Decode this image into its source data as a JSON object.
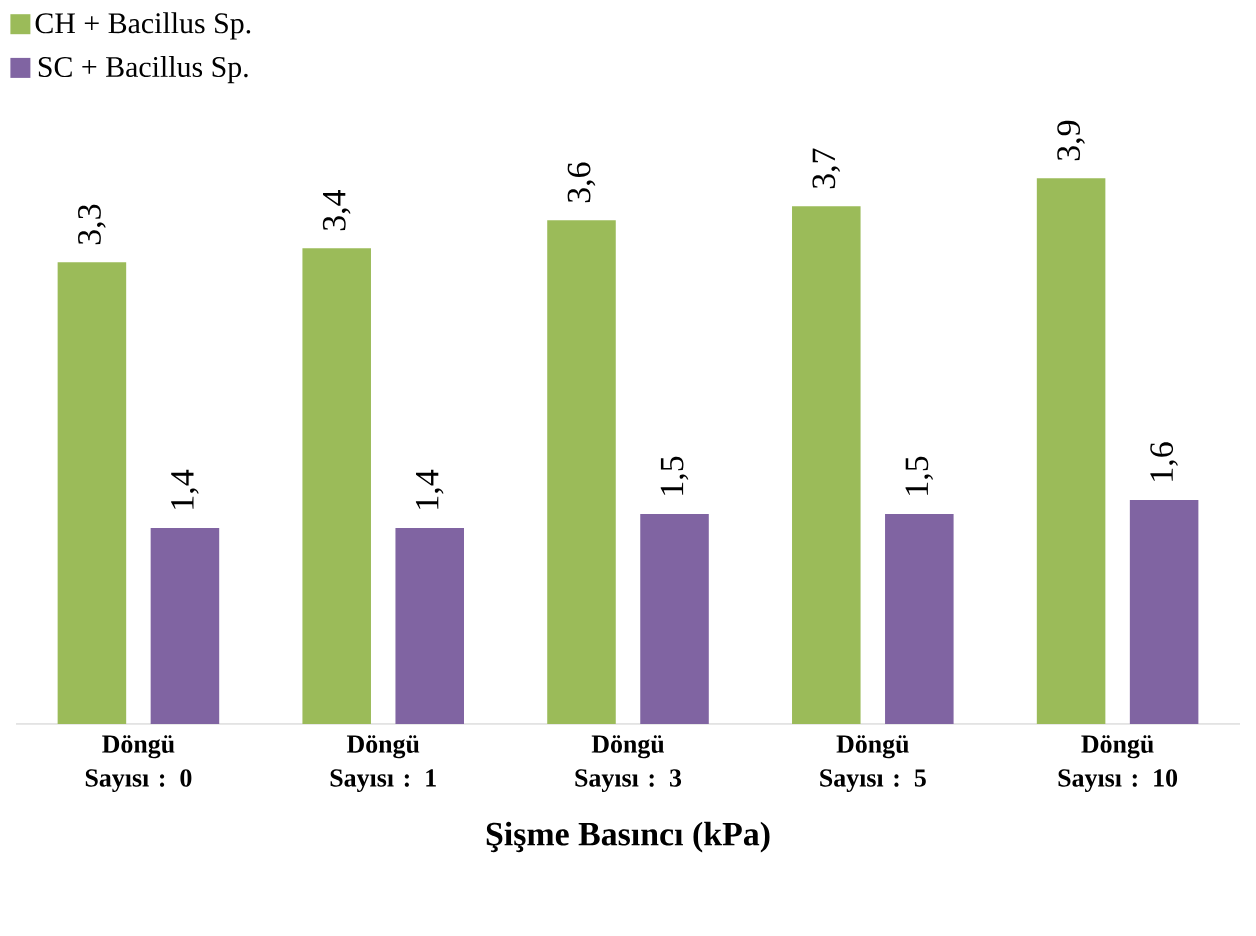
{
  "chart_data": {
    "type": "bar",
    "xlabel": "Şişme Basıncı (kPa)",
    "categories": [
      "Döngü Sayısı : 0",
      "Döngü Sayısı : 1",
      "Döngü Sayısı : 3",
      "Döngü Sayısı : 5",
      "Döngü Sayısı : 10"
    ],
    "series": [
      {
        "name": "CH + Bacillus Sp.",
        "color": "#9bbb59",
        "values": [
          3.3,
          3.4,
          3.6,
          3.7,
          3.9
        ],
        "value_labels": [
          "3,3",
          "3,4",
          "3,6",
          "3,7",
          "3,9"
        ]
      },
      {
        "name": "SC + Bacillus Sp.",
        "color": "#8064a2",
        "values": [
          1.4,
          1.4,
          1.5,
          1.5,
          1.6
        ],
        "value_labels": [
          "1,4",
          "1,4",
          "1,5",
          "1,5",
          "1,6"
        ]
      }
    ],
    "legend": "top left"
  }
}
